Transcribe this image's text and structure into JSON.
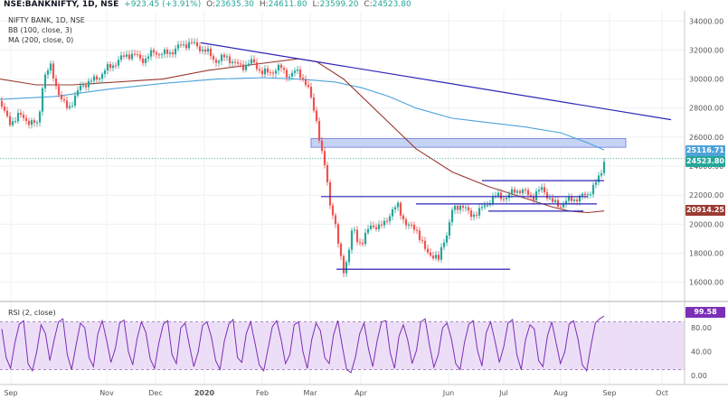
{
  "header": {
    "symbol": "NSE:BANKNIFTY, 1D, NSE",
    "change": "+923.45 (+3.91%)",
    "o_label": "O:",
    "o_value": "23635.30",
    "h_label": "H:",
    "h_value": "24611.80",
    "l_label": "L:",
    "l_value": "23599.20",
    "c_label": "C:",
    "c_value": "24523.80",
    "last_value": "24523.80",
    "title": "NIFTY BANK, 1D, NSE",
    "indicator_bb": "BB (100, close, 3)",
    "indicator_ma": "MA (200, close, 0)",
    "rsi_label": "RSI (2, close)"
  },
  "chart_data": {
    "type": "candlestick",
    "title": "NIFTY BANK, 1D, NSE",
    "x_ticks": [
      "Sep",
      "Nov",
      "Dec",
      "2020",
      "Feb",
      "Mar",
      "Apr",
      "Jun",
      "Jul",
      "Aug",
      "Sep",
      "Oct"
    ],
    "y_ticks": [
      "34000.00",
      "32000.00",
      "30000.00",
      "28000.00",
      "26000.00",
      "24000.00",
      "22000.00",
      "20000.00",
      "18000.00",
      "16000.00"
    ],
    "ylim": [
      14800,
      34700
    ],
    "close_path": [
      [
        0,
        28500
      ],
      [
        10,
        26900
      ],
      [
        20,
        27500
      ],
      [
        32,
        27100
      ],
      [
        42,
        26800
      ],
      [
        48,
        30100
      ],
      [
        56,
        30800
      ],
      [
        62,
        29600
      ],
      [
        68,
        28500
      ],
      [
        75,
        28000
      ],
      [
        82,
        28600
      ],
      [
        90,
        29600
      ],
      [
        100,
        29800
      ],
      [
        110,
        30200
      ],
      [
        120,
        30800
      ],
      [
        130,
        31200
      ],
      [
        140,
        31700
      ],
      [
        150,
        31600
      ],
      [
        160,
        31300
      ],
      [
        170,
        31900
      ],
      [
        180,
        31700
      ],
      [
        190,
        31900
      ],
      [
        200,
        32300
      ],
      [
        210,
        32500
      ],
      [
        220,
        32200
      ],
      [
        230,
        31800
      ],
      [
        240,
        31200
      ],
      [
        250,
        31600
      ],
      [
        260,
        31000
      ],
      [
        270,
        30900
      ],
      [
        280,
        31200
      ],
      [
        290,
        30400
      ],
      [
        300,
        30500
      ],
      [
        310,
        30800
      ],
      [
        320,
        30200
      ],
      [
        330,
        30600
      ],
      [
        340,
        29400
      ],
      [
        345,
        28500
      ],
      [
        350,
        27200
      ],
      [
        355,
        25000
      ],
      [
        360,
        23800
      ],
      [
        365,
        21500
      ],
      [
        370,
        20200
      ],
      [
        375,
        18200
      ],
      [
        380,
        16900
      ],
      [
        385,
        17800
      ],
      [
        390,
        19800
      ],
      [
        395,
        19000
      ],
      [
        400,
        18600
      ],
      [
        410,
        20000
      ],
      [
        420,
        19700
      ],
      [
        430,
        20600
      ],
      [
        440,
        21300
      ],
      [
        450,
        19800
      ],
      [
        460,
        19800
      ],
      [
        465,
        18900
      ],
      [
        470,
        18200
      ],
      [
        480,
        17800
      ],
      [
        485,
        17500
      ],
      [
        490,
        18800
      ],
      [
        495,
        19500
      ],
      [
        500,
        20900
      ],
      [
        510,
        21400
      ],
      [
        520,
        20600
      ],
      [
        530,
        20900
      ],
      [
        540,
        21500
      ],
      [
        550,
        22000
      ],
      [
        560,
        21800
      ],
      [
        570,
        22400
      ],
      [
        580,
        22200
      ],
      [
        590,
        21900
      ],
      [
        600,
        22500
      ],
      [
        610,
        21500
      ],
      [
        620,
        21300
      ],
      [
        630,
        21700
      ],
      [
        640,
        21800
      ],
      [
        650,
        22100
      ],
      [
        660,
        22900
      ],
      [
        665,
        23600
      ],
      [
        668,
        24523.8
      ]
    ],
    "series": [
      {
        "name": "BB (100, close, 3)",
        "color": "#4da3d9",
        "value_label": "25116.71",
        "points": [
          [
            0,
            28600
          ],
          [
            60,
            28800
          ],
          [
            120,
            29300
          ],
          [
            180,
            29700
          ],
          [
            240,
            30000
          ],
          [
            290,
            30100
          ],
          [
            330,
            30000
          ],
          [
            370,
            29800
          ],
          [
            400,
            29400
          ],
          [
            430,
            28800
          ],
          [
            460,
            28000
          ],
          [
            500,
            27300
          ],
          [
            540,
            27000
          ],
          [
            580,
            26700
          ],
          [
            620,
            26300
          ],
          [
            650,
            25600
          ],
          [
            668,
            25116.71
          ]
        ]
      },
      {
        "name": "MA (200, close, 0)",
        "color": "#9b3b33",
        "value_label": "20914.25",
        "points": [
          [
            0,
            30000
          ],
          [
            40,
            29600
          ],
          [
            80,
            29600
          ],
          [
            130,
            29800
          ],
          [
            180,
            30000
          ],
          [
            230,
            30600
          ],
          [
            280,
            31000
          ],
          [
            330,
            31400
          ],
          [
            350,
            31200
          ],
          [
            380,
            30000
          ],
          [
            420,
            27600
          ],
          [
            460,
            25200
          ],
          [
            500,
            23600
          ],
          [
            540,
            22600
          ],
          [
            580,
            21800
          ],
          [
            610,
            21200
          ],
          [
            630,
            20900
          ],
          [
            650,
            20800
          ],
          [
            668,
            20914.25
          ]
        ]
      }
    ],
    "trend_lines": [
      {
        "name": "descending-trendline",
        "color": "#2e24b8",
        "points": [
          [
            222,
            32500
          ],
          [
            742,
            27200
          ]
        ]
      },
      {
        "name": "support-line",
        "color": "#2e24b8",
        "points": [
          [
            372,
            16900
          ],
          [
            564,
            16900
          ]
        ]
      },
      {
        "name": "mid-support-line",
        "color": "#2e24b8",
        "points": [
          [
            355,
            21900
          ],
          [
            650,
            21900
          ]
        ]
      },
      {
        "name": "lower-range-line",
        "color": "#2e24b8",
        "points": [
          [
            460,
            21400
          ],
          [
            660,
            21400
          ]
        ]
      },
      {
        "name": "range-bottom-line",
        "color": "#2e24b8",
        "points": [
          [
            540,
            20900
          ],
          [
            645,
            20900
          ]
        ]
      },
      {
        "name": "range-top-line",
        "color": "#2e24b8",
        "points": [
          [
            533,
            23000
          ],
          [
            668,
            23000
          ]
        ]
      }
    ],
    "zone": {
      "name": "resistance-zone",
      "color": "#c5d3f5",
      "y_top": 25900,
      "y_bottom": 25300,
      "x_start": 344,
      "x_end": 692
    },
    "price_labels": [
      {
        "label": "25116.71",
        "color": "#4da3d9"
      },
      {
        "label": "24523.80",
        "color": "#26a69a"
      },
      {
        "label": "20914.25",
        "color": "#9b3b33"
      }
    ],
    "rsi": {
      "title": "RSI (2, close)",
      "value_label": "99.58",
      "ylim": [
        -15,
        115
      ],
      "y_ticks": [
        "80.00",
        "40.00",
        "0.00"
      ],
      "band_upper": 90,
      "band_lower": 10,
      "values": [
        78,
        30,
        12,
        55,
        86,
        92,
        20,
        8,
        40,
        85,
        70,
        25,
        60,
        90,
        95,
        35,
        10,
        50,
        88,
        80,
        30,
        15,
        70,
        92,
        60,
        22,
        45,
        88,
        93,
        40,
        18,
        62,
        90,
        72,
        28,
        12,
        55,
        86,
        92,
        35,
        20,
        80,
        88,
        50,
        15,
        40,
        84,
        90,
        65,
        25,
        10,
        58,
        86,
        94,
        30,
        22,
        70,
        90,
        55,
        18,
        8,
        45,
        82,
        92,
        60,
        20,
        35,
        85,
        90,
        40,
        12,
        60,
        88,
        75,
        30,
        20,
        68,
        92,
        50,
        10,
        5,
        30,
        70,
        88,
        45,
        15,
        58,
        90,
        92,
        38,
        12,
        66,
        85,
        60,
        20,
        42,
        90,
        95,
        50,
        14,
        35,
        80,
        88,
        62,
        20,
        10,
        55,
        86,
        92,
        42,
        16,
        72,
        90,
        58,
        22,
        48,
        88,
        94,
        35,
        10,
        60,
        85,
        78,
        25,
        15,
        66,
        90,
        55,
        20,
        40,
        86,
        92,
        62,
        18,
        8,
        50,
        88,
        95,
        99.58
      ],
      "color": "#7b2fb5"
    }
  }
}
